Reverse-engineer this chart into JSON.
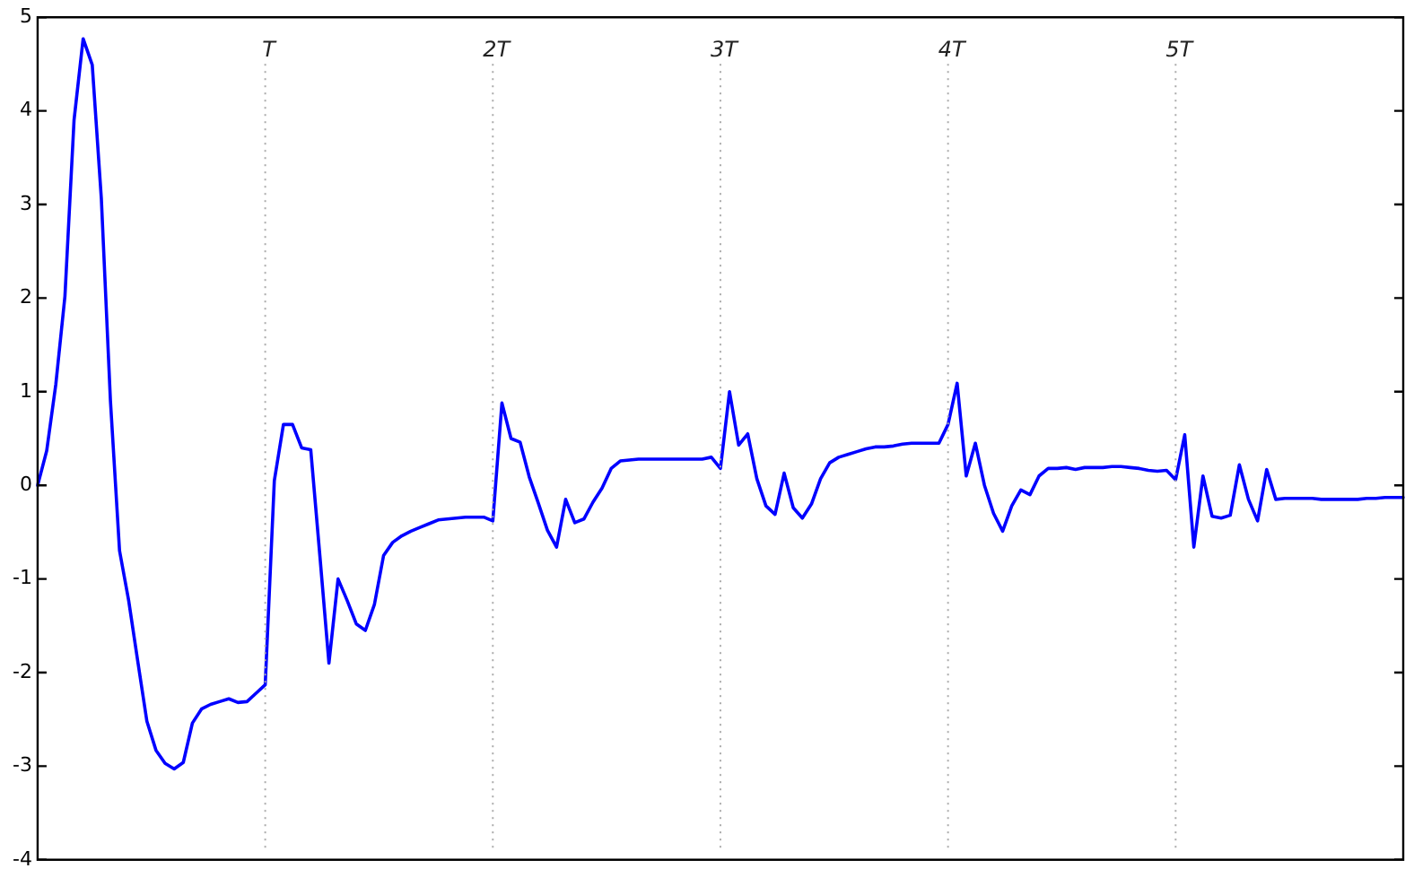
{
  "chart_data": {
    "type": "line",
    "ylim": [
      -4,
      5
    ],
    "categories": [
      null,
      null,
      null,
      null,
      null,
      null,
      null,
      null,
      null,
      null,
      null,
      null,
      null,
      null,
      null,
      null,
      null,
      null,
      null,
      null,
      null,
      null,
      null,
      null,
      null,
      null,
      null,
      null,
      null,
      null,
      null,
      null,
      null,
      null,
      null,
      null,
      null,
      null,
      null,
      null,
      null,
      null,
      null,
      null,
      null,
      null,
      null,
      null,
      null,
      null,
      null,
      null,
      null,
      null,
      null,
      null,
      null,
      null,
      null,
      null,
      null,
      null,
      null,
      null,
      null,
      null,
      null,
      null,
      null,
      null,
      null,
      null,
      null,
      null,
      null,
      null,
      null,
      null,
      null,
      null,
      null,
      null,
      null,
      null,
      null,
      null,
      null,
      null,
      null,
      null,
      null,
      null,
      null,
      null,
      null,
      null,
      null,
      null,
      null,
      null,
      null,
      null,
      null,
      null,
      null,
      null,
      null,
      null,
      null,
      null,
      null,
      null,
      null,
      null,
      null,
      null,
      null,
      null,
      null,
      null,
      null,
      null,
      null,
      null,
      null,
      null,
      null,
      null,
      null,
      null,
      null,
      null,
      null,
      null,
      null,
      null,
      null,
      null,
      null,
      null,
      null,
      null,
      null,
      null,
      null,
      null,
      null,
      null,
      null,
      null,
      null
    ],
    "yticks": [
      -4,
      -3,
      -2,
      -1,
      0,
      1,
      2,
      3,
      4,
      5
    ],
    "tick_labels": "y",
    "grid": false,
    "legend": false,
    "marker": "none",
    "line_style": "solid",
    "annotations": [
      "T",
      "2T",
      "3T",
      "4T",
      "5T"
    ],
    "series": [
      {
        "color": "#0000ff",
        "values": [
          0,
          0.37,
          1.08,
          2.02,
          3.9,
          4.77,
          4.49,
          3.06,
          0.9,
          -0.7,
          -1.23,
          -1.88,
          -2.52,
          -2.83,
          -2.97,
          -3.03,
          -2.96,
          -2.54,
          -2.39,
          -2.34,
          -2.31,
          -2.28,
          -2.32,
          -2.31,
          -2.22,
          -2.13,
          0.05,
          0.65,
          0.65,
          0.4,
          0.38,
          -0.75,
          -1.9,
          -1,
          -1.23,
          -1.48,
          -1.55,
          -1.27,
          -0.75,
          -0.61,
          -0.54,
          -0.49,
          -0.45,
          -0.41,
          -0.37,
          -0.36,
          -0.35,
          -0.34,
          -0.34,
          -0.34,
          -0.38,
          0.88,
          0.5,
          0.46,
          0.09,
          -0.19,
          -0.48,
          -0.66,
          -0.15,
          -0.4,
          -0.36,
          -0.18,
          -0.03,
          0.18,
          0.26,
          0.27,
          0.28,
          0.28,
          0.28,
          0.28,
          0.28,
          0.28,
          0.28,
          0.28,
          0.3,
          0.18,
          1,
          0.43,
          0.55,
          0.07,
          -0.22,
          -0.31,
          0.13,
          -0.24,
          -0.35,
          -0.2,
          0.07,
          0.24,
          0.3,
          0.33,
          0.36,
          0.39,
          0.41,
          0.41,
          0.42,
          0.44,
          0.45,
          0.45,
          0.45,
          0.45,
          0.65,
          1.09,
          0.1,
          0.45,
          0,
          -0.3,
          -0.49,
          -0.22,
          -0.05,
          -0.1,
          0.1,
          0.18,
          0.18,
          0.19,
          0.17,
          0.19,
          0.19,
          0.19,
          0.2,
          0.2,
          0.19,
          0.18,
          0.16,
          0.15,
          0.16,
          0.06,
          0.54,
          -0.66,
          0.1,
          -0.33,
          -0.35,
          -0.32,
          0.22,
          -0.15,
          -0.38,
          0.17,
          -0.15,
          -0.14,
          -0.14,
          -0.14,
          -0.14,
          -0.15,
          -0.15,
          -0.15,
          -0.15,
          -0.15,
          -0.14,
          -0.14,
          -0.13,
          -0.13,
          -0.13
        ]
      }
    ]
  }
}
